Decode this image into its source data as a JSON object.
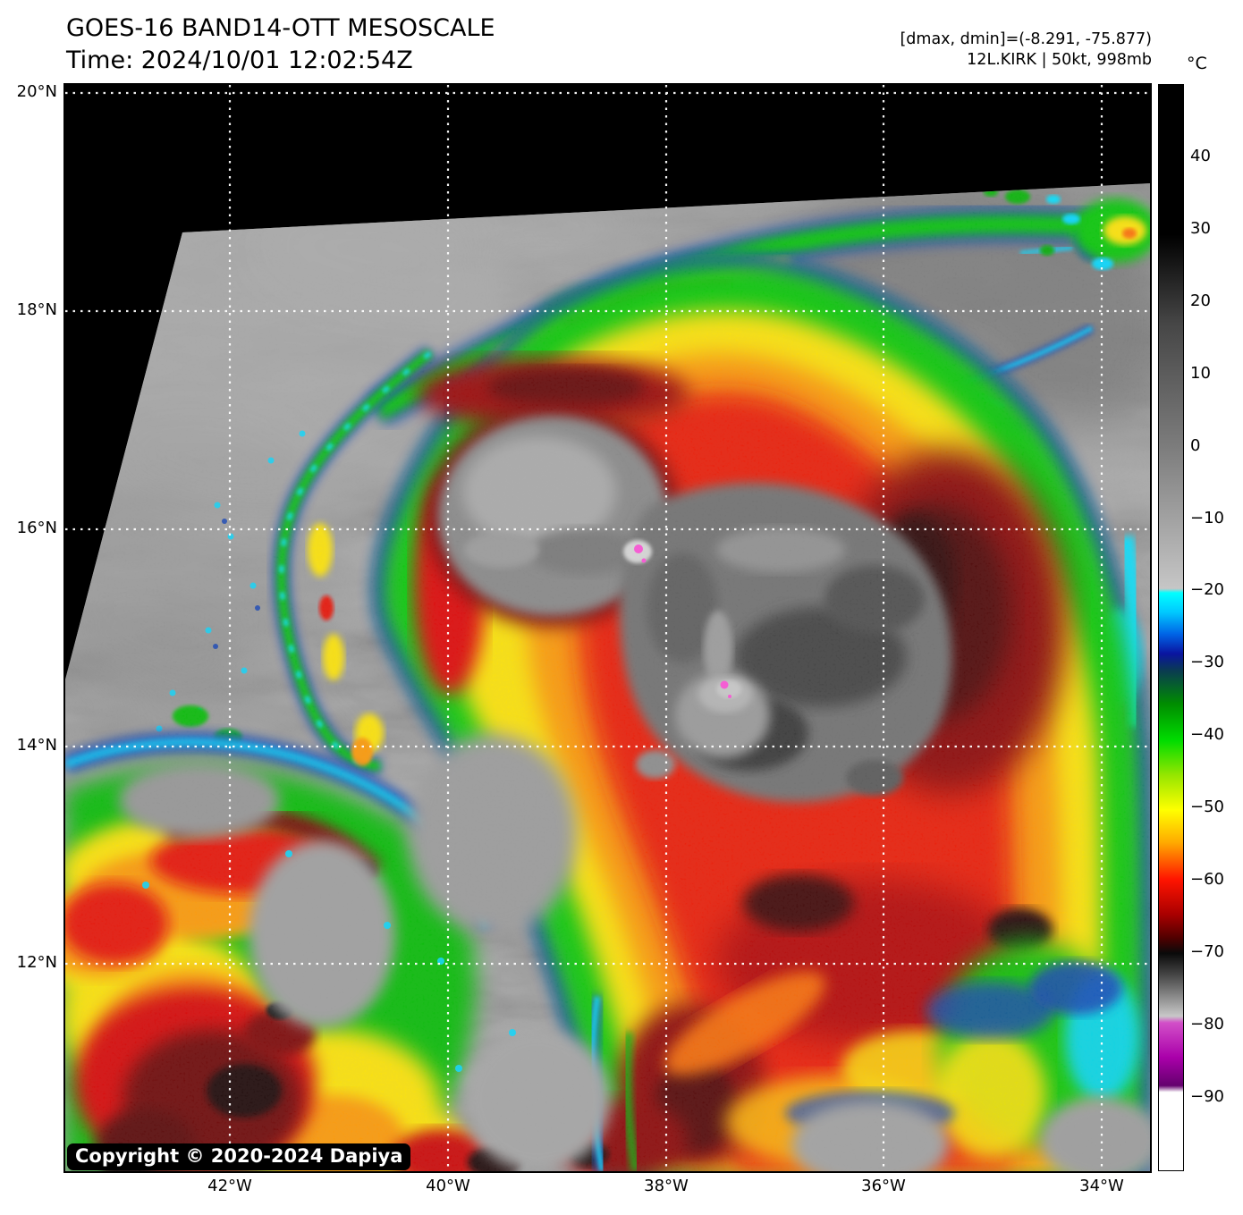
{
  "header": {
    "title": "GOES-16 BAND14-OTT MESOSCALE",
    "time": "Time: 2024/10/01 12:02:54Z",
    "dmax_dmin": "[dmax, dmin]=(-8.291, -75.877)",
    "storm": "12L.KIRK | 50kt, 998mb"
  },
  "axes": {
    "lat": [
      "20°N",
      "18°N",
      "16°N",
      "14°N",
      "12°N"
    ],
    "lon": [
      "42°W",
      "40°W",
      "38°W",
      "36°W",
      "34°W"
    ]
  },
  "colorbar": {
    "unit": "°C",
    "ticks": [
      "40",
      "30",
      "20",
      "10",
      "0",
      "−10",
      "−20",
      "−30",
      "−40",
      "−50",
      "−60",
      "−70",
      "−80",
      "−90"
    ],
    "gradient": [
      {
        "c": "#000000",
        "p": 0
      },
      {
        "c": "#000000",
        "p": 13.8
      },
      {
        "c": "#464646",
        "p": 22
      },
      {
        "c": "#7d7d7d",
        "p": 33.5
      },
      {
        "c": "#c6c6c6",
        "p": 46.4
      },
      {
        "c": "#00ffff",
        "p": 46.8
      },
      {
        "c": "#00c8ff",
        "p": 48.6
      },
      {
        "c": "#0064e6",
        "p": 50.6
      },
      {
        "c": "#0a14a0",
        "p": 52.4
      },
      {
        "c": "#0a3c50",
        "p": 54.0
      },
      {
        "c": "#008c00",
        "p": 57.0
      },
      {
        "c": "#00dc00",
        "p": 60.4
      },
      {
        "c": "#96e600",
        "p": 63.6
      },
      {
        "c": "#ffff00",
        "p": 66.8
      },
      {
        "c": "#ffaa00",
        "p": 69.8
      },
      {
        "c": "#ff1400",
        "p": 73.2
      },
      {
        "c": "#aa0000",
        "p": 76.4
      },
      {
        "c": "#500000",
        "p": 78.6
      },
      {
        "c": "#0a0a0a",
        "p": 80.0
      },
      {
        "c": "#464646",
        "p": 82.0
      },
      {
        "c": "#c8c8c8",
        "p": 85.8
      },
      {
        "c": "#d24fc8",
        "p": 86.4
      },
      {
        "c": "#aa00aa",
        "p": 89.6
      },
      {
        "c": "#64006e",
        "p": 92.2
      },
      {
        "c": "#ffffff",
        "p": 92.8
      },
      {
        "c": "#ffffff",
        "p": 100
      }
    ]
  },
  "map": {
    "copyright": "Copyright © 2020-2024 Dapiya"
  }
}
